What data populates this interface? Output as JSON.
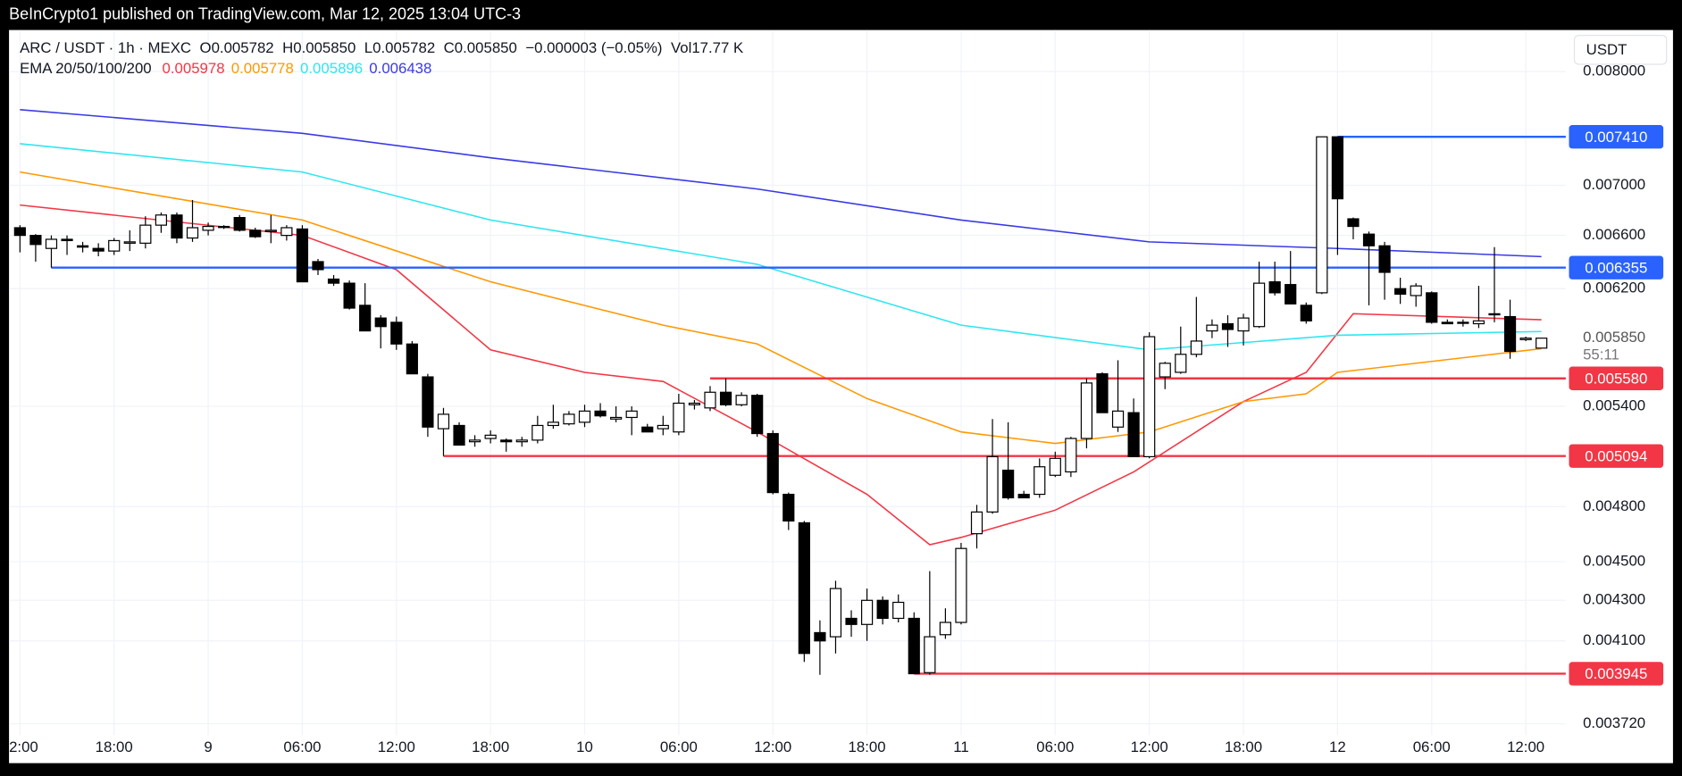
{
  "header": "BeInCrypto1 published on TradingView.com, Mar 12, 2025 13:04 UTC-3",
  "chart_data": {
    "type": "candlestick",
    "symbol": "ARC / USDT · 1h · MEXC",
    "legend_open": "O0.005782",
    "legend_high": "H0.005850",
    "legend_low": "L0.005782",
    "legend_close": "C0.005850",
    "legend_change": "−0.000003 (−0.05%)",
    "legend_volume": "Vol17.77 K",
    "indicator_label": "EMA 20/50/100/200",
    "currency": "USDT",
    "log_scale": true,
    "grid": true,
    "up_color": "#ffffff",
    "down_color": "#000000",
    "wick_color": "#000000",
    "ylim": [
      0.00367,
      0.0084
    ],
    "yticks": [
      {
        "value": 0.00372,
        "label": "0.003720"
      },
      {
        "value": 0.0041,
        "label": "0.004100"
      },
      {
        "value": 0.0043,
        "label": "0.004300"
      },
      {
        "value": 0.0045,
        "label": "0.004500"
      },
      {
        "value": 0.0048,
        "label": "0.004800"
      },
      {
        "value": 0.0054,
        "label": "0.005400"
      },
      {
        "value": 0.0062,
        "label": "0.006200"
      },
      {
        "value": 0.0066,
        "label": "0.006600"
      },
      {
        "value": 0.007,
        "label": "0.007000"
      },
      {
        "value": 0.008,
        "label": "0.008000"
      }
    ],
    "categories": [
      "2:00",
      null,
      null,
      null,
      null,
      null,
      "18:00",
      null,
      null,
      null,
      null,
      null,
      "9",
      null,
      null,
      null,
      null,
      null,
      "06:00",
      null,
      null,
      null,
      null,
      null,
      "12:00",
      null,
      null,
      null,
      null,
      null,
      "18:00",
      null,
      null,
      null,
      null,
      null,
      "10",
      null,
      null,
      null,
      null,
      null,
      "06:00",
      null,
      null,
      null,
      null,
      null,
      "12:00",
      null,
      null,
      null,
      null,
      null,
      "18:00",
      null,
      null,
      null,
      null,
      null,
      "11",
      null,
      null,
      null,
      null,
      null,
      "06:00",
      null,
      null,
      null,
      null,
      null,
      "12:00",
      null,
      null,
      null,
      null,
      null,
      "18:00",
      null,
      null,
      null,
      null,
      null,
      "12",
      null,
      null,
      null,
      null,
      null,
      "06:00",
      null,
      null,
      null,
      null,
      null,
      "12:00",
      null
    ],
    "open": [
      0.00666,
      0.0066,
      0.0065,
      0.00657,
      0.00652,
      0.0065,
      0.00648,
      0.00654,
      0.00654,
      0.00668,
      0.00676,
      0.00658,
      0.00664,
      0.00667,
      0.00674,
      0.00664,
      0.00663,
      0.0066,
      0.00665,
      0.0064,
      0.00627,
      0.00624,
      0.00608,
      0.00599,
      0.00596,
      0.00581,
      0.00559,
      0.00526,
      0.00528,
      0.00518,
      0.0052,
      0.00519,
      0.00518,
      0.00519,
      0.00528,
      0.00529,
      0.0053,
      0.00537,
      0.00532,
      0.00533,
      0.00527,
      0.00526,
      0.00524,
      0.00541,
      0.00539,
      0.00549,
      0.00541,
      0.00547,
      0.00523,
      0.00487,
      0.00471,
      0.00414,
      0.00412,
      0.00421,
      0.00418,
      0.0043,
      0.00421,
      0.00421,
      0.00395,
      0.00413,
      0.00419,
      0.00465,
      0.00477,
      0.00501,
      0.00487,
      0.00487,
      0.00498,
      0.005,
      0.0052,
      0.00561,
      0.00527,
      0.00536,
      0.00509,
      0.00559,
      0.00562,
      0.00574,
      0.0059,
      0.00595,
      0.0059,
      0.00593,
      0.00625,
      0.00623,
      0.00608,
      0.00617,
      0.00741,
      0.00673,
      0.00661,
      0.00652,
      0.0062,
      0.00615,
      0.00617,
      0.00596,
      0.00596,
      0.00595,
      0.00602,
      0.006,
      0.00584,
      0.005782
    ],
    "high": [
      0.00668,
      0.00661,
      0.0066,
      0.0066,
      0.00655,
      0.00654,
      0.00658,
      0.00664,
      0.00675,
      0.00678,
      0.00678,
      0.00688,
      0.0067,
      0.00668,
      0.00676,
      0.00666,
      0.00676,
      0.00668,
      0.00668,
      0.00642,
      0.0063,
      0.00626,
      0.00624,
      0.00601,
      0.006,
      0.00583,
      0.00561,
      0.00539,
      0.0053,
      0.00522,
      0.00525,
      0.0052,
      0.00521,
      0.00534,
      0.00541,
      0.00537,
      0.00541,
      0.00542,
      0.0054,
      0.0054,
      0.00529,
      0.00534,
      0.00548,
      0.00544,
      0.00553,
      0.00558,
      0.00549,
      0.00548,
      0.00525,
      0.00488,
      0.00472,
      0.0042,
      0.0044,
      0.00425,
      0.00436,
      0.00432,
      0.00433,
      0.00424,
      0.00445,
      0.00426,
      0.0046,
      0.00481,
      0.00532,
      0.0053,
      0.00489,
      0.00508,
      0.00512,
      0.00521,
      0.00558,
      0.00562,
      0.0057,
      0.00545,
      0.00589,
      0.00569,
      0.00593,
      0.00614,
      0.00598,
      0.00601,
      0.00602,
      0.0064,
      0.0064,
      0.00648,
      0.0061,
      0.00741,
      0.00741,
      0.00674,
      0.00663,
      0.00655,
      0.00628,
      0.00624,
      0.00618,
      0.00598,
      0.00598,
      0.00622,
      0.00651,
      0.00612,
      0.00586,
      0.00585
    ],
    "low": [
      0.00647,
      0.0064,
      0.006355,
      0.00645,
      0.00647,
      0.00644,
      0.00645,
      0.00648,
      0.0065,
      0.00662,
      0.00654,
      0.00655,
      0.0066,
      0.00665,
      0.00663,
      0.00658,
      0.00654,
      0.00656,
      0.00625,
      0.0063,
      0.00622,
      0.00605,
      0.0059,
      0.00578,
      0.00577,
      0.00561,
      0.00521,
      0.005094,
      0.00516,
      0.00515,
      0.00517,
      0.00512,
      0.00515,
      0.00517,
      0.00526,
      0.00528,
      0.00527,
      0.00533,
      0.0053,
      0.00522,
      0.00524,
      0.00522,
      0.00522,
      0.00538,
      0.00537,
      0.0054,
      0.0054,
      0.00521,
      0.00487,
      0.00467,
      0.004,
      0.00394,
      0.00404,
      0.00412,
      0.0041,
      0.00418,
      0.00419,
      0.003945,
      0.00394,
      0.00411,
      0.00418,
      0.00457,
      0.00476,
      0.00484,
      0.00485,
      0.00485,
      0.00497,
      0.00497,
      0.00514,
      0.00536,
      0.00524,
      0.005094,
      0.00508,
      0.00551,
      0.00561,
      0.00572,
      0.00585,
      0.00579,
      0.0058,
      0.00592,
      0.00615,
      0.00611,
      0.00595,
      0.00616,
      0.00645,
      0.00657,
      0.00608,
      0.00612,
      0.00609,
      0.00607,
      0.00595,
      0.00595,
      0.00593,
      0.00592,
      0.00596,
      0.00571,
      0.00583,
      0.005782
    ],
    "close": [
      0.0066,
      0.00653,
      0.00657,
      0.00656,
      0.00651,
      0.00648,
      0.00656,
      0.00655,
      0.00668,
      0.00676,
      0.00658,
      0.00666,
      0.00667,
      0.00667,
      0.00664,
      0.00659,
      0.00664,
      0.00666,
      0.00625,
      0.00634,
      0.00624,
      0.00606,
      0.0059,
      0.00593,
      0.00581,
      0.00561,
      0.00527,
      0.00535,
      0.00516,
      0.00519,
      0.00522,
      0.00518,
      0.00519,
      0.00528,
      0.0053,
      0.00535,
      0.00537,
      0.00534,
      0.00533,
      0.00537,
      0.00524,
      0.00528,
      0.00542,
      0.00542,
      0.00549,
      0.00541,
      0.00547,
      0.00523,
      0.00488,
      0.00472,
      0.00404,
      0.0041,
      0.00436,
      0.00418,
      0.0043,
      0.00421,
      0.00429,
      0.003945,
      0.00412,
      0.00419,
      0.00457,
      0.00477,
      0.00509,
      0.00485,
      0.00485,
      0.00503,
      0.00508,
      0.0052,
      0.00555,
      0.00536,
      0.00537,
      0.00509,
      0.00586,
      0.00568,
      0.00574,
      0.00583,
      0.00594,
      0.00591,
      0.00599,
      0.00624,
      0.00617,
      0.00609,
      0.00597,
      0.00741,
      0.00689,
      0.00667,
      0.00652,
      0.00632,
      0.00616,
      0.00622,
      0.00596,
      0.00595,
      0.00596,
      0.00597,
      0.00602,
      0.00576,
      0.00585,
      0.00585
    ],
    "ema": [
      {
        "value_label": "0.005978",
        "color": "#f23645",
        "x": [
          0,
          18,
          24,
          30,
          36,
          41,
          47,
          54,
          58,
          60,
          66,
          71,
          78,
          82,
          85,
          97
        ],
        "values": [
          0.00684,
          0.0066,
          0.00634,
          0.00577,
          0.00562,
          0.00556,
          0.00524,
          0.00487,
          0.00459,
          0.00463,
          0.00478,
          0.005,
          0.00543,
          0.00562,
          0.00602,
          0.005978
        ]
      },
      {
        "value_label": "0.005778",
        "color": "#ff9800",
        "x": [
          0,
          18,
          30,
          41,
          47,
          54,
          60,
          66,
          72,
          78,
          82,
          84,
          97
        ],
        "values": [
          0.00711,
          0.00672,
          0.00625,
          0.00594,
          0.00581,
          0.00545,
          0.00524,
          0.00517,
          0.00524,
          0.00543,
          0.00548,
          0.00562,
          0.005778
        ]
      },
      {
        "value_label": "0.005896",
        "color": "#2ee6f0",
        "x": [
          0,
          18,
          30,
          47,
          60,
          72,
          84,
          97
        ],
        "values": [
          0.00735,
          0.00711,
          0.00672,
          0.00638,
          0.00594,
          0.00577,
          0.00587,
          0.005896
        ]
      },
      {
        "value_label": "0.006438",
        "color": "#3a3ae6",
        "x": [
          0,
          18,
          30,
          47,
          60,
          72,
          84,
          97
        ],
        "values": [
          0.00765,
          0.00744,
          0.00723,
          0.00697,
          0.00672,
          0.00655,
          0.0065,
          0.006438
        ]
      }
    ],
    "levels": [
      {
        "value": 0.00741,
        "label": "0.007410",
        "color": "#2962ff",
        "start": 84
      },
      {
        "value": 0.006355,
        "label": "0.006355",
        "color": "#2962ff",
        "start": 2
      },
      {
        "value": 0.00558,
        "label": "0.005580",
        "color": "#f23645",
        "start": 44
      },
      {
        "value": 0.005094,
        "label": "0.005094",
        "color": "#f23645",
        "start": 27
      },
      {
        "value": 0.003945,
        "label": "0.003945",
        "color": "#f23645",
        "start": 57
      }
    ],
    "last_price": {
      "value": 0.00585,
      "label": "0.005850"
    },
    "countdown": "55:11"
  }
}
